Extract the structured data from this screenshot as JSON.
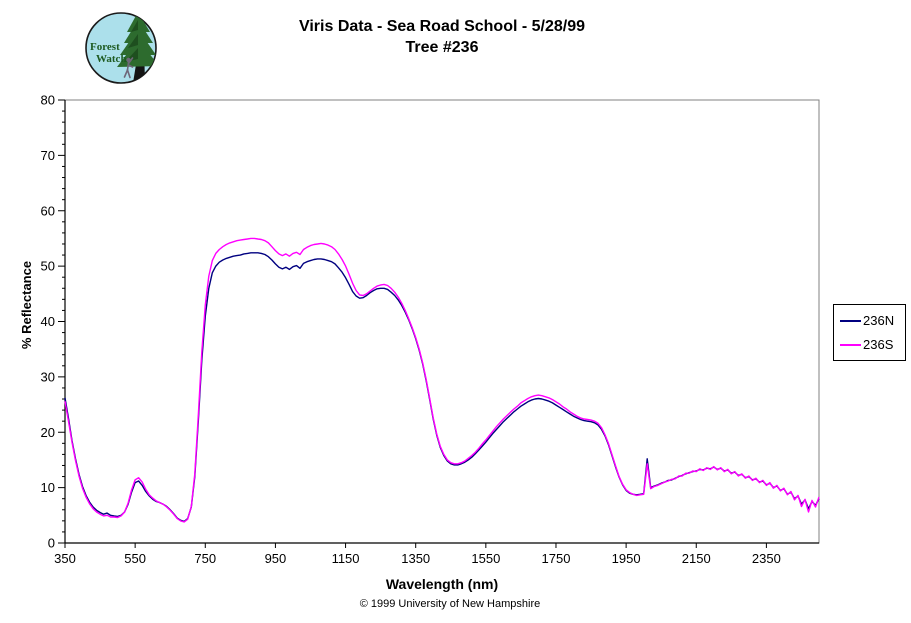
{
  "header": {
    "title_line1": "Viris Data - Sea Road School - 5/28/99",
    "title_line2": "Tree #236"
  },
  "logo": {
    "name": "Forest Watch",
    "text_line1": "Forest",
    "text_line2": "Watch",
    "circle_fill": "#ACE0EB",
    "foliage_color": "#2D6B2E",
    "trunk_color": "#141414",
    "climber_color": "#6F6678",
    "text_color": "#1D5A20",
    "outline_color": "#1A1A1A"
  },
  "footer": {
    "copyright": "© 1999 University of New Hampshire"
  },
  "chart_data": {
    "type": "line",
    "title": "Viris Data - Sea Road School - 5/28/99  Tree #236",
    "xlabel": "Wavelength (nm)",
    "ylabel": "% Reflectance",
    "xlim": [
      350,
      2500
    ],
    "ylim": [
      0,
      80
    ],
    "x_ticks": [
      350,
      550,
      750,
      950,
      1150,
      1350,
      1550,
      1750,
      1950,
      2150,
      2350
    ],
    "y_ticks": [
      0,
      10,
      20,
      30,
      40,
      50,
      60,
      70,
      80
    ],
    "y_minor_tick_step": 2,
    "grid": false,
    "legend_position": "right-outside",
    "axis_color": "#000000",
    "plot_border_color": "#808080",
    "background": "#FFFFFF",
    "x": [
      350,
      360,
      370,
      380,
      390,
      400,
      410,
      420,
      430,
      440,
      450,
      460,
      470,
      480,
      490,
      500,
      510,
      520,
      530,
      540,
      550,
      560,
      570,
      580,
      590,
      600,
      610,
      620,
      630,
      640,
      650,
      660,
      670,
      680,
      690,
      700,
      710,
      720,
      730,
      740,
      750,
      760,
      770,
      780,
      790,
      800,
      810,
      820,
      830,
      840,
      850,
      860,
      870,
      880,
      890,
      900,
      910,
      920,
      930,
      940,
      950,
      960,
      970,
      980,
      990,
      1000,
      1010,
      1020,
      1030,
      1040,
      1050,
      1060,
      1070,
      1080,
      1090,
      1100,
      1110,
      1120,
      1130,
      1140,
      1150,
      1160,
      1170,
      1180,
      1190,
      1200,
      1210,
      1220,
      1230,
      1240,
      1250,
      1260,
      1270,
      1280,
      1290,
      1300,
      1310,
      1320,
      1330,
      1340,
      1350,
      1360,
      1370,
      1380,
      1390,
      1400,
      1410,
      1420,
      1430,
      1440,
      1450,
      1460,
      1470,
      1480,
      1490,
      1500,
      1510,
      1520,
      1530,
      1540,
      1550,
      1560,
      1570,
      1580,
      1590,
      1600,
      1610,
      1620,
      1630,
      1640,
      1650,
      1660,
      1670,
      1680,
      1690,
      1700,
      1710,
      1720,
      1730,
      1740,
      1750,
      1760,
      1770,
      1780,
      1790,
      1800,
      1810,
      1820,
      1830,
      1840,
      1850,
      1860,
      1870,
      1880,
      1890,
      1900,
      1910,
      1920,
      1930,
      1940,
      1950,
      1960,
      1970,
      1980,
      1990,
      2000,
      2010,
      2020,
      2030,
      2040,
      2050,
      2060,
      2070,
      2080,
      2090,
      2100,
      2110,
      2120,
      2130,
      2140,
      2150,
      2160,
      2170,
      2180,
      2190,
      2200,
      2210,
      2220,
      2230,
      2240,
      2250,
      2260,
      2270,
      2280,
      2290,
      2300,
      2310,
      2320,
      2330,
      2340,
      2350,
      2360,
      2370,
      2380,
      2390,
      2400,
      2410,
      2420,
      2430,
      2440,
      2450,
      2460,
      2470,
      2480,
      2490,
      2500
    ],
    "series": [
      {
        "name": "236N",
        "color": "#000080",
        "values": [
          26.2,
          22.5,
          18.5,
          15.2,
          12.4,
          10.2,
          8.6,
          7.4,
          6.5,
          5.9,
          5.5,
          5.2,
          5.4,
          5.0,
          4.9,
          4.8,
          5.0,
          5.6,
          7.0,
          9.2,
          10.9,
          11.2,
          10.4,
          9.3,
          8.5,
          7.9,
          7.5,
          7.3,
          7.0,
          6.6,
          6.0,
          5.3,
          4.5,
          4.1,
          3.9,
          4.4,
          6.5,
          12.0,
          22.0,
          33.0,
          41.0,
          46.0,
          48.8,
          50.0,
          50.7,
          51.1,
          51.4,
          51.6,
          51.8,
          51.9,
          52.0,
          52.2,
          52.3,
          52.4,
          52.4,
          52.4,
          52.3,
          52.1,
          51.7,
          51.1,
          50.4,
          49.8,
          49.5,
          49.8,
          49.4,
          49.9,
          50.1,
          49.6,
          50.5,
          50.8,
          51.0,
          51.2,
          51.3,
          51.3,
          51.2,
          51.0,
          50.8,
          50.4,
          49.7,
          48.9,
          47.9,
          46.7,
          45.4,
          44.6,
          44.2,
          44.3,
          44.7,
          45.2,
          45.6,
          45.9,
          46.0,
          46.0,
          45.8,
          45.3,
          44.7,
          43.9,
          42.9,
          41.7,
          40.3,
          38.7,
          36.9,
          34.8,
          32.3,
          29.3,
          25.9,
          22.4,
          19.5,
          17.3,
          15.8,
          14.8,
          14.3,
          14.1,
          14.1,
          14.3,
          14.6,
          15.0,
          15.5,
          16.1,
          16.8,
          17.5,
          18.2,
          19.0,
          19.8,
          20.5,
          21.2,
          21.9,
          22.5,
          23.1,
          23.7,
          24.2,
          24.7,
          25.1,
          25.5,
          25.8,
          26.0,
          26.1,
          26.0,
          25.8,
          25.6,
          25.3,
          24.9,
          24.5,
          24.1,
          23.7,
          23.3,
          22.9,
          22.6,
          22.3,
          22.1,
          22.0,
          21.9,
          21.7,
          21.3,
          20.5,
          19.3,
          17.7,
          15.7,
          13.7,
          11.9,
          10.5,
          9.5,
          9.0,
          8.8,
          8.7,
          8.8,
          8.9,
          15.2,
          10.0,
          10.3,
          10.5,
          10.8,
          11.0,
          11.3,
          11.4,
          11.7,
          12.0,
          12.2,
          12.5,
          12.7,
          12.9,
          13.0,
          13.3,
          13.2,
          13.5,
          13.4,
          13.7,
          13.3,
          13.5,
          13.0,
          13.2,
          12.6,
          12.8,
          12.2,
          12.4,
          11.8,
          12.0,
          11.4,
          11.6,
          11.0,
          11.2,
          10.5,
          10.8,
          10.0,
          10.3,
          9.5,
          9.8,
          8.8,
          9.2,
          8.0,
          8.5,
          7.0,
          7.8,
          6.2,
          7.5,
          6.8,
          8.0
        ]
      },
      {
        "name": "236S",
        "color": "#FF00FF",
        "values": [
          25.6,
          22.0,
          18.2,
          14.9,
          12.1,
          9.9,
          8.3,
          7.1,
          6.2,
          5.6,
          5.2,
          4.9,
          5.0,
          4.7,
          4.7,
          4.6,
          4.9,
          5.6,
          7.2,
          9.6,
          11.4,
          11.8,
          11.0,
          9.7,
          8.7,
          8.1,
          7.6,
          7.3,
          7.0,
          6.5,
          5.9,
          5.2,
          4.4,
          4.0,
          3.8,
          4.3,
          6.6,
          12.5,
          23.0,
          34.5,
          43.0,
          48.2,
          51.0,
          52.3,
          53.0,
          53.5,
          53.9,
          54.2,
          54.4,
          54.6,
          54.7,
          54.8,
          54.9,
          55.0,
          55.0,
          54.9,
          54.8,
          54.6,
          54.2,
          53.5,
          52.8,
          52.2,
          51.9,
          52.2,
          51.8,
          52.3,
          52.5,
          52.1,
          53.0,
          53.4,
          53.7,
          53.9,
          54.0,
          54.1,
          54.0,
          53.8,
          53.5,
          53.0,
          52.2,
          51.2,
          50.0,
          48.5,
          46.9,
          45.6,
          44.8,
          44.7,
          45.0,
          45.5,
          46.0,
          46.4,
          46.6,
          46.7,
          46.5,
          46.0,
          45.3,
          44.4,
          43.3,
          42.0,
          40.5,
          38.9,
          37.1,
          35.0,
          32.5,
          29.5,
          26.1,
          22.6,
          19.7,
          17.5,
          16.0,
          15.0,
          14.5,
          14.3,
          14.3,
          14.5,
          14.8,
          15.3,
          15.8,
          16.4,
          17.1,
          17.9,
          18.6,
          19.4,
          20.2,
          21.0,
          21.7,
          22.4,
          23.0,
          23.6,
          24.2,
          24.7,
          25.3,
          25.7,
          26.1,
          26.4,
          26.6,
          26.7,
          26.6,
          26.4,
          26.2,
          25.9,
          25.5,
          25.1,
          24.6,
          24.2,
          23.7,
          23.3,
          22.9,
          22.6,
          22.4,
          22.3,
          22.2,
          22.0,
          21.6,
          20.8,
          19.5,
          17.9,
          15.9,
          13.9,
          12.0,
          10.6,
          9.6,
          9.1,
          8.8,
          8.6,
          8.7,
          8.8,
          14.3,
          9.8,
          10.2,
          10.4,
          10.7,
          11.0,
          11.2,
          11.5,
          11.6,
          12.1,
          12.1,
          12.6,
          12.6,
          13.0,
          12.9,
          13.4,
          13.1,
          13.6,
          13.3,
          13.8,
          13.2,
          13.6,
          12.9,
          13.3,
          12.5,
          12.9,
          12.1,
          12.5,
          11.7,
          12.1,
          11.3,
          11.7,
          10.9,
          11.3,
          10.4,
          10.9,
          9.9,
          10.4,
          9.4,
          9.9,
          8.7,
          9.3,
          7.8,
          8.6,
          6.6,
          7.9,
          5.6,
          7.7,
          6.5,
          8.3
        ]
      }
    ]
  }
}
